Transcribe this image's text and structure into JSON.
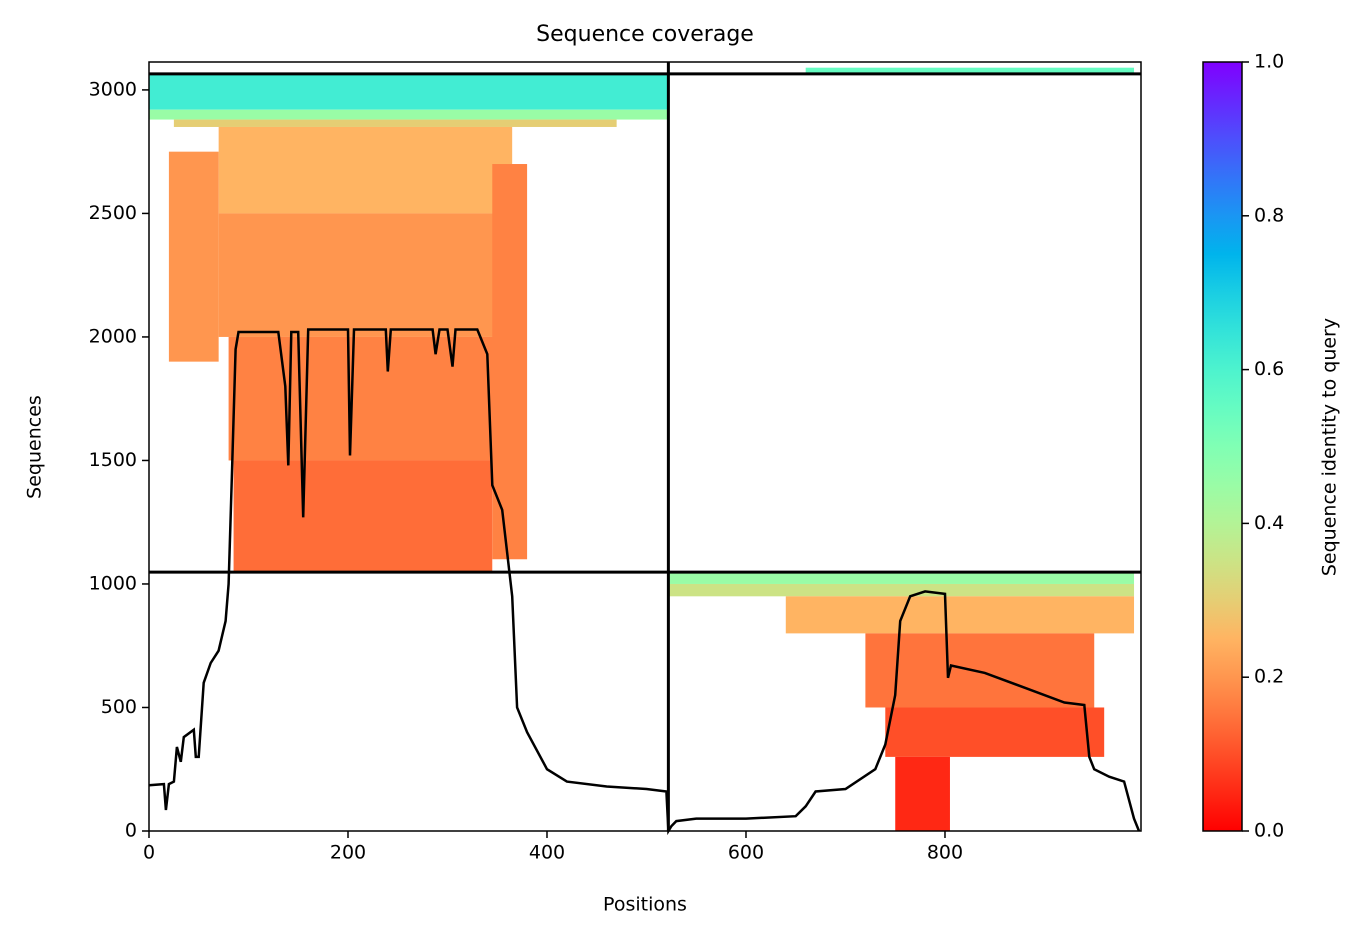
{
  "chart_data": {
    "type": "coverage",
    "title": "Sequence coverage",
    "xlabel": "Positions",
    "ylabel": "Sequences",
    "xlim": [
      0,
      997
    ],
    "ylim": [
      0,
      3113
    ],
    "xticks": [
      0,
      200,
      400,
      600,
      800
    ],
    "yticks": [
      0,
      500,
      1000,
      1500,
      2000,
      2500,
      3000
    ],
    "colorbar": {
      "label": "Sequence identity to query",
      "clim": [
        0,
        1
      ],
      "ticks": [
        0.0,
        0.2,
        0.4,
        0.6,
        0.8,
        1.0
      ],
      "tick_labels": [
        "0.0",
        "0.2",
        "0.4",
        "0.6",
        "0.8",
        "1.0"
      ],
      "colormap": "rainbow_r"
    },
    "blocks": [
      {
        "x": [
          0,
          522
        ],
        "y": [
          2920,
          3065
        ],
        "value": 0.62
      },
      {
        "x": [
          0,
          522
        ],
        "y": [
          2880,
          2920
        ],
        "value": 0.45
      },
      {
        "x": [
          25,
          470
        ],
        "y": [
          2850,
          2880
        ],
        "value": 0.3
      },
      {
        "x": [
          70,
          365
        ],
        "y": [
          2500,
          2850
        ],
        "value": 0.25
      },
      {
        "x": [
          70,
          365
        ],
        "y": [
          2000,
          2500
        ],
        "value": 0.2
      },
      {
        "x": [
          80,
          355
        ],
        "y": [
          1500,
          2000
        ],
        "value": 0.17
      },
      {
        "x": [
          85,
          345
        ],
        "y": [
          1048,
          1500
        ],
        "value": 0.14
      },
      {
        "x": [
          345,
          380
        ],
        "y": [
          1100,
          2700
        ],
        "value": 0.17
      },
      {
        "x": [
          20,
          70
        ],
        "y": [
          1900,
          2750
        ],
        "value": 0.2
      },
      {
        "x": [
          660,
          990
        ],
        "y": [
          3070,
          3090
        ],
        "value": 0.55
      },
      {
        "x": [
          522,
          990
        ],
        "y": [
          1000,
          1048
        ],
        "value": 0.45
      },
      {
        "x": [
          522,
          990
        ],
        "y": [
          950,
          1000
        ],
        "value": 0.35
      },
      {
        "x": [
          640,
          990
        ],
        "y": [
          800,
          950
        ],
        "value": 0.25
      },
      {
        "x": [
          720,
          950
        ],
        "y": [
          500,
          800
        ],
        "value": 0.15
      },
      {
        "x": [
          740,
          960
        ],
        "y": [
          300,
          500
        ],
        "value": 0.1
      },
      {
        "x": [
          750,
          805
        ],
        "y": [
          0,
          300
        ],
        "value": 0.05
      }
    ],
    "dividers": {
      "x": [
        522
      ],
      "y": [
        1048,
        3065
      ]
    },
    "series": [
      {
        "color": "#000000",
        "x": [
          0,
          15,
          17,
          20,
          25,
          28,
          32,
          35,
          45,
          47,
          50,
          55,
          62,
          70,
          77,
          80,
          83,
          87,
          90,
          130,
          137,
          140,
          143,
          150,
          155,
          160,
          200,
          202,
          206,
          238,
          240,
          243,
          285,
          288,
          292,
          300,
          305,
          308,
          330,
          340,
          345,
          355,
          365,
          370,
          380,
          400,
          420,
          460,
          500,
          520,
          522,
          525,
          530,
          550,
          600,
          650,
          660,
          670,
          700,
          730,
          740,
          750,
          755,
          765,
          780,
          800,
          803,
          806,
          840,
          880,
          920,
          940,
          945,
          950,
          965,
          980,
          990,
          995
        ],
        "values": [
          185,
          190,
          85,
          190,
          200,
          340,
          280,
          380,
          410,
          300,
          300,
          600,
          680,
          730,
          850,
          1000,
          1400,
          1950,
          2020,
          2020,
          1800,
          1480,
          2020,
          2020,
          1270,
          2030,
          2030,
          1520,
          2030,
          2030,
          1860,
          2030,
          2030,
          1930,
          2030,
          2030,
          1880,
          2030,
          2030,
          1930,
          1400,
          1300,
          950,
          500,
          400,
          250,
          200,
          180,
          170,
          160,
          0,
          20,
          40,
          50,
          50,
          60,
          100,
          160,
          170,
          250,
          350,
          550,
          850,
          950,
          970,
          960,
          620,
          670,
          640,
          580,
          520,
          510,
          300,
          250,
          220,
          200,
          50,
          0
        ]
      }
    ]
  }
}
